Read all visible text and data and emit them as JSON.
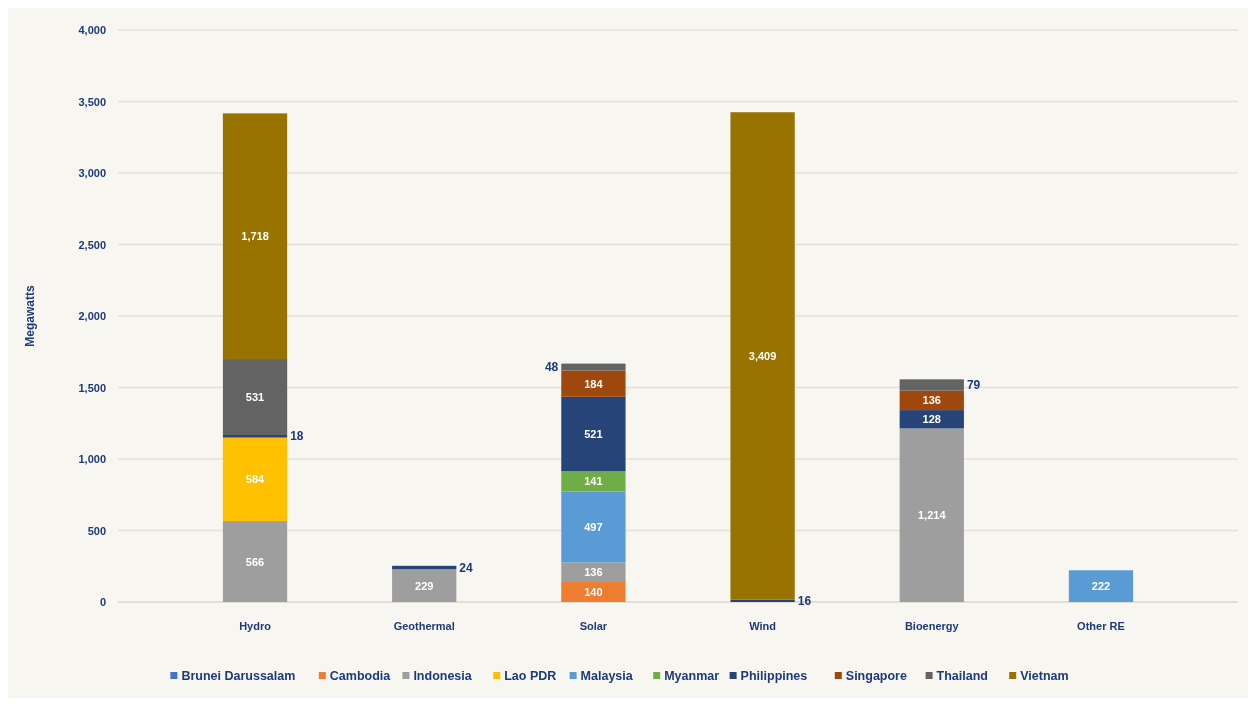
{
  "chart_data": {
    "type": "bar",
    "stacked": true,
    "ylabel": "Megawatts",
    "categories": [
      "Hydro",
      "Geothermal",
      "Solar",
      "Wind",
      "Bioenergy",
      "Other RE"
    ],
    "series": [
      {
        "name": "Brunei Darussalam",
        "color": "#4472c4",
        "values": [
          null,
          null,
          null,
          null,
          null,
          null
        ]
      },
      {
        "name": "Cambodia",
        "color": "#ed7d31",
        "values": [
          null,
          null,
          140,
          null,
          null,
          null
        ],
        "value_labels": [
          null,
          null,
          "140",
          null,
          null,
          null
        ]
      },
      {
        "name": "Indonesia",
        "color": "#9e9e9e",
        "values": [
          566,
          229,
          136,
          null,
          1214,
          null
        ],
        "value_labels": [
          "566",
          "229",
          "136",
          null,
          "1,214",
          null
        ]
      },
      {
        "name": "Lao PDR",
        "color": "#ffc000",
        "values": [
          584,
          null,
          null,
          null,
          null,
          null
        ],
        "value_labels": [
          "584",
          null,
          null,
          null,
          null,
          null
        ]
      },
      {
        "name": "Malaysia",
        "color": "#5b9bd5",
        "values": [
          null,
          null,
          497,
          null,
          null,
          222
        ],
        "value_labels": [
          null,
          null,
          "497",
          null,
          null,
          "222"
        ]
      },
      {
        "name": "Myanmar",
        "color": "#70ad47",
        "values": [
          null,
          null,
          141,
          null,
          null,
          null
        ],
        "value_labels": [
          null,
          null,
          "141",
          null,
          null,
          null
        ]
      },
      {
        "name": "Philippines",
        "color": "#264478",
        "values": [
          18,
          24,
          521,
          16,
          128,
          null
        ],
        "value_labels": [
          "18",
          "24",
          "521",
          "16",
          "128",
          null
        ]
      },
      {
        "name": "Singapore",
        "color": "#9e480e",
        "values": [
          null,
          null,
          184,
          null,
          136,
          null
        ],
        "value_labels": [
          null,
          null,
          "184",
          null,
          "136",
          null
        ]
      },
      {
        "name": "Thailand",
        "color": "#636363",
        "values": [
          531,
          null,
          48,
          null,
          79,
          null
        ],
        "value_labels": [
          "531",
          null,
          "48",
          null,
          "79",
          null
        ]
      },
      {
        "name": "Vietnam",
        "color": "#997300",
        "values": [
          1718,
          null,
          null,
          3409,
          null,
          null
        ],
        "value_labels": [
          "1,718",
          null,
          null,
          "3,409",
          null,
          null
        ]
      }
    ],
    "ylim": [
      0,
      4000
    ],
    "yticks": [
      {
        "value": 0,
        "label": "0"
      },
      {
        "value": 500,
        "label": "500"
      },
      {
        "value": 1000,
        "label": "1,000"
      },
      {
        "value": 1500,
        "label": "1,500"
      },
      {
        "value": 2000,
        "label": "2,000"
      },
      {
        "value": 2500,
        "label": "2,500"
      },
      {
        "value": 3000,
        "label": "3,000"
      },
      {
        "value": 3500,
        "label": "3,500"
      },
      {
        "value": 4000,
        "label": "4,000"
      }
    ],
    "grid": "y",
    "legend": "bottom"
  }
}
